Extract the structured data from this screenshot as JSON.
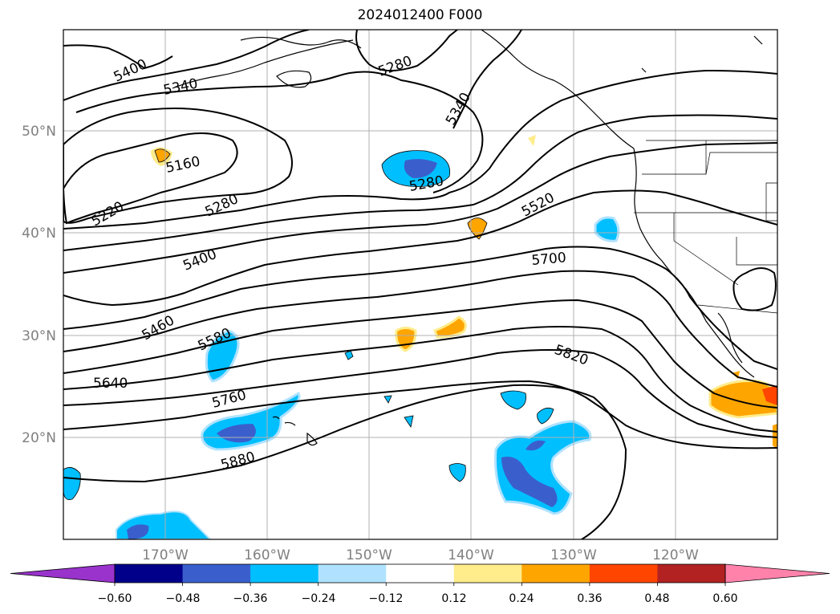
{
  "title": "2024012400 F000",
  "axes": {
    "lon_ticks": [
      "170°W",
      "160°W",
      "150°W",
      "140°W",
      "130°W",
      "120°W"
    ],
    "lat_ticks": [
      "50°N",
      "40°N",
      "30°N",
      "20°N"
    ]
  },
  "contour_labels": [
    "5400",
    "5340",
    "5280",
    "5340",
    "5160",
    "5220",
    "5280",
    "5280",
    "5520",
    "5400",
    "5700",
    "5460",
    "5580",
    "5820",
    "5640",
    "5760",
    "5880"
  ],
  "colorbar": {
    "ticks": [
      "−0.60",
      "−0.48",
      "−0.36",
      "−0.24",
      "−0.12",
      "0.12",
      "0.24",
      "0.36",
      "0.48",
      "0.60"
    ],
    "colors": [
      "#9933cc",
      "#00008b",
      "#3a5fcd",
      "#00bfff",
      "#b0e2ff",
      "#ffffff",
      "#ffec8b",
      "#ffa500",
      "#ff4500",
      "#b22222",
      "#ff82ab"
    ]
  }
}
